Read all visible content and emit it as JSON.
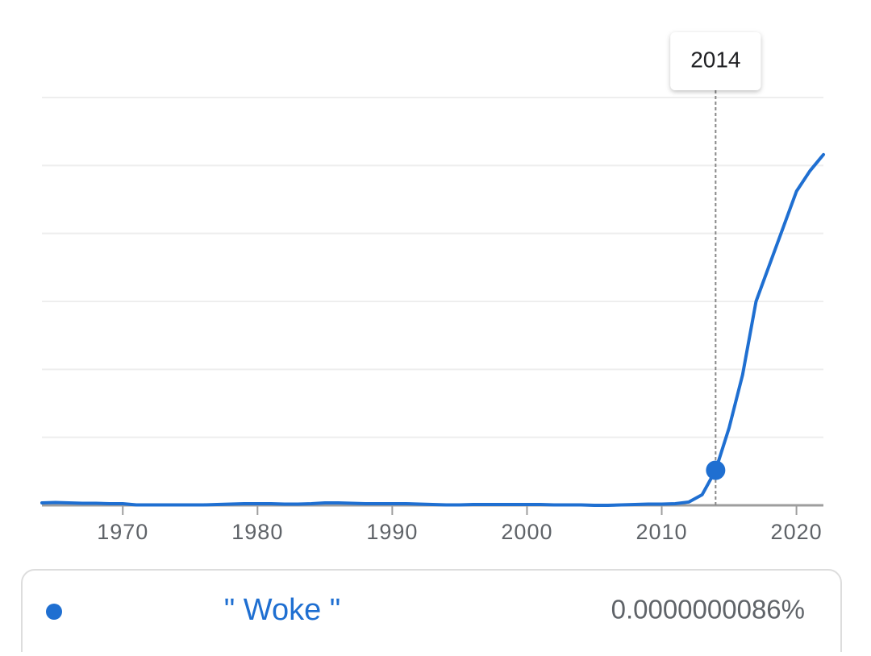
{
  "chart_data": {
    "type": "line",
    "x": [
      1964,
      1965,
      1966,
      1967,
      1968,
      1969,
      1970,
      1971,
      1972,
      1973,
      1974,
      1975,
      1976,
      1977,
      1978,
      1979,
      1980,
      1981,
      1982,
      1983,
      1984,
      1985,
      1986,
      1987,
      1988,
      1989,
      1990,
      1991,
      1992,
      1993,
      1994,
      1995,
      1996,
      1997,
      1998,
      1999,
      2000,
      2001,
      2002,
      2003,
      2004,
      2005,
      2006,
      2007,
      2008,
      2009,
      2010,
      2011,
      2012,
      2013,
      2014,
      2015,
      2016,
      2017,
      2018,
      2019,
      2020,
      2021,
      2022
    ],
    "series": [
      {
        "name": "\" Woke \"",
        "color": "#1f6fd1",
        "values": [
          6e-10,
          7e-10,
          6e-10,
          5e-10,
          5e-10,
          4e-10,
          4e-10,
          1e-10,
          1e-10,
          1e-10,
          1e-10,
          1e-10,
          1e-10,
          2e-10,
          3e-10,
          4e-10,
          4e-10,
          4e-10,
          3e-10,
          3e-10,
          4e-10,
          6e-10,
          6e-10,
          5e-10,
          4e-10,
          4e-10,
          4e-10,
          4e-10,
          3e-10,
          2e-10,
          1e-10,
          1e-10,
          2e-10,
          2e-10,
          2e-10,
          2e-10,
          2e-10,
          2e-10,
          1e-10,
          1e-10,
          1e-10,
          0,
          0,
          1e-10,
          2e-10,
          3e-10,
          3e-10,
          4e-10,
          8e-10,
          2.6e-09,
          8.6e-09,
          1.9e-08,
          3.2e-08,
          5e-08,
          5.9e-08,
          6.8e-08,
          7.7e-08,
          8.2e-08,
          8.6e-08
        ]
      }
    ],
    "highlight": {
      "x": 2014,
      "series": 0,
      "value_label": "0.0000000086%"
    },
    "xlim": [
      1964,
      2022
    ],
    "xticks": [
      1970,
      1980,
      1990,
      2000,
      2010,
      2020
    ],
    "ylim": [
      0,
      1e-07
    ]
  }
}
